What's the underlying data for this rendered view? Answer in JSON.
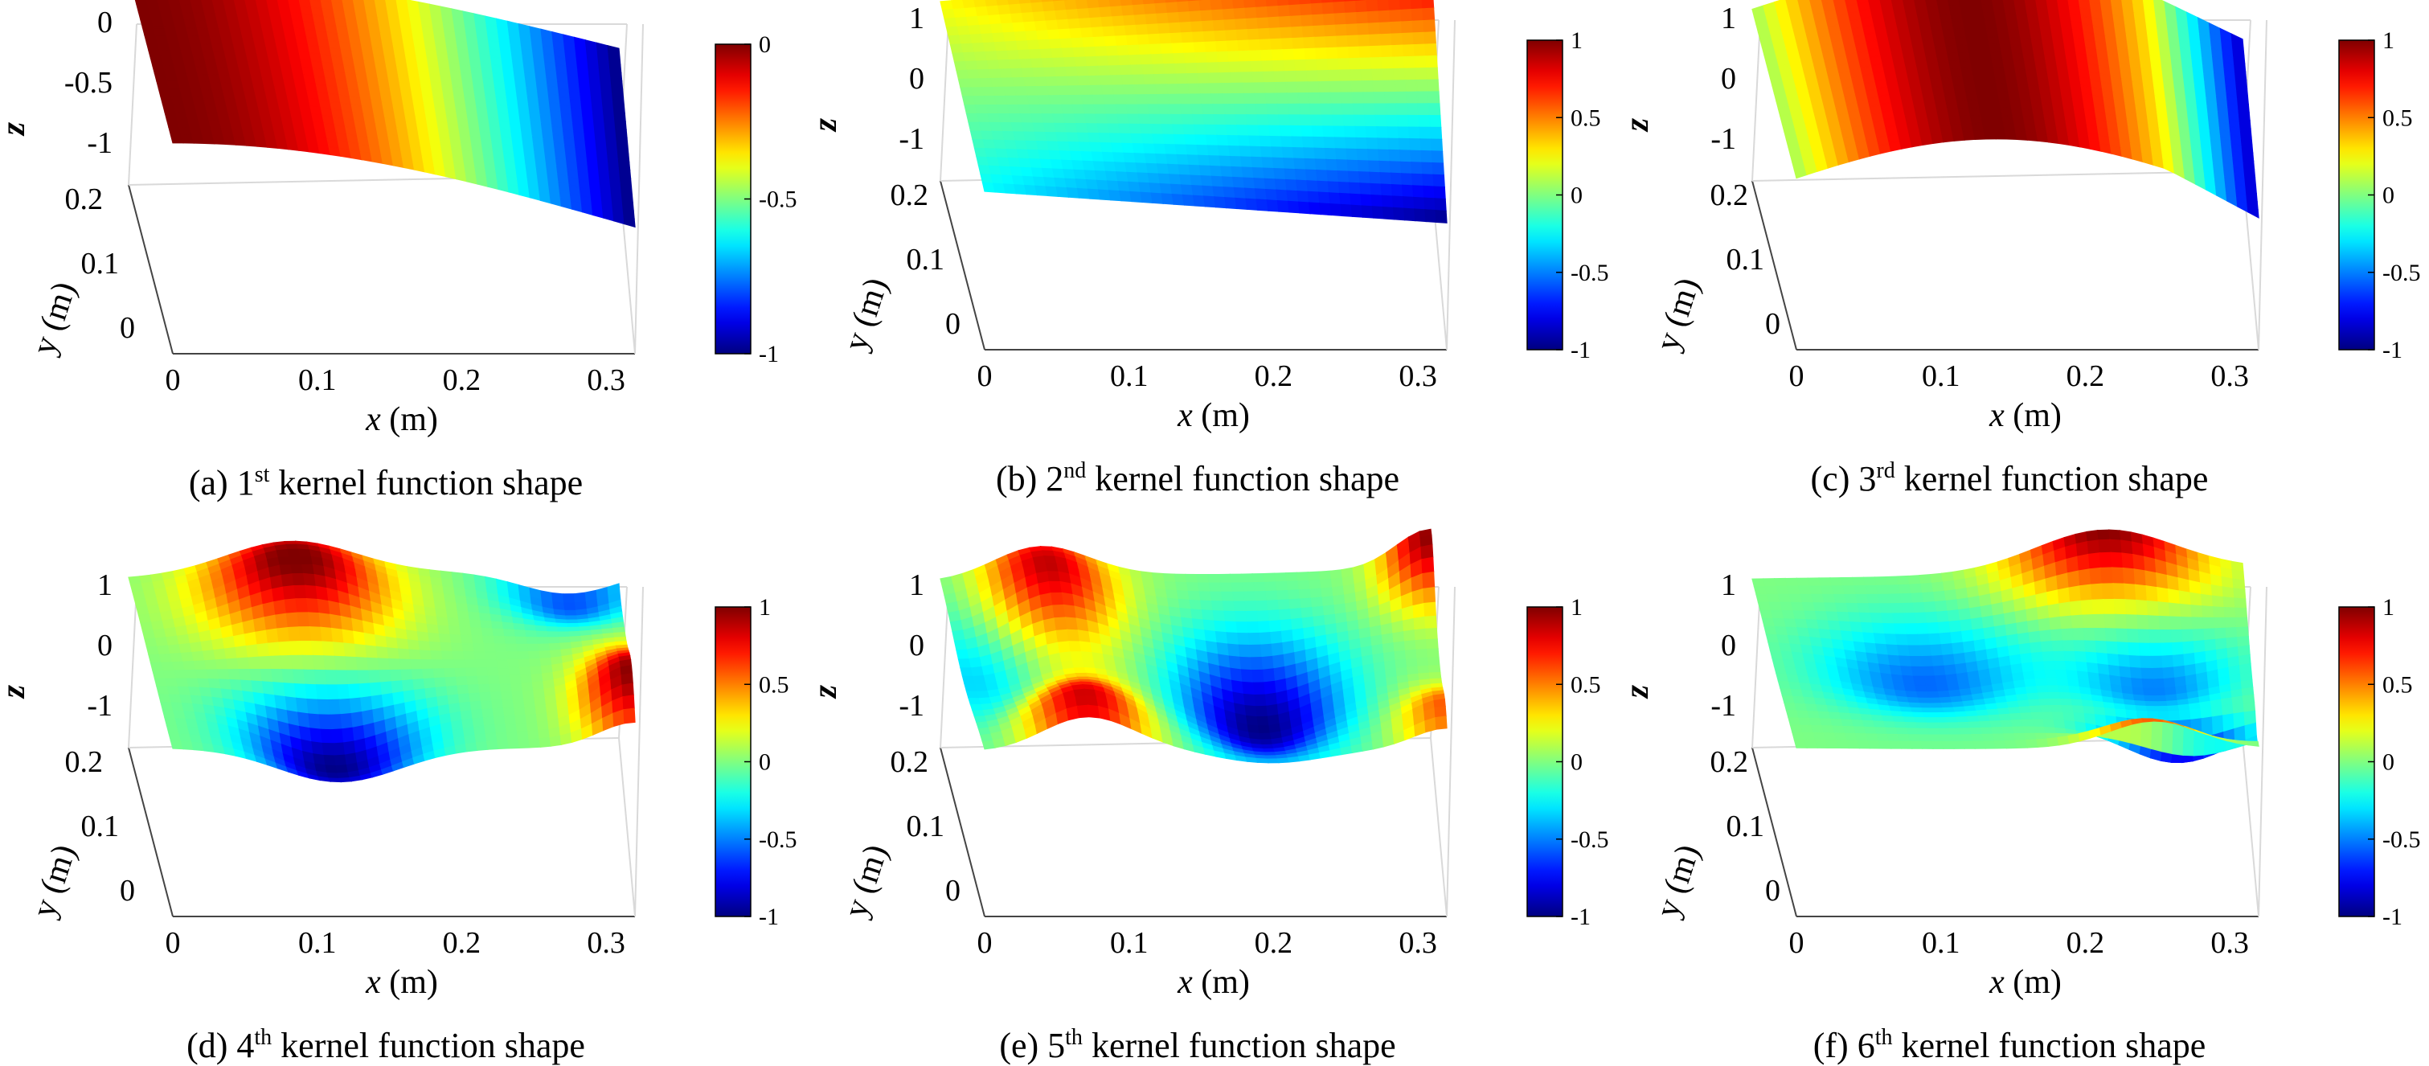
{
  "figure": {
    "note": "Six kernel function shapes shown as 3D surface plots with jet colormap"
  },
  "colors": {
    "jet": [
      "#00008f",
      "#0000ff",
      "#00ffff",
      "#ffff00",
      "#ff0000",
      "#800000"
    ],
    "grid": "#d9d9d9"
  },
  "chart_data": [
    {
      "type": "surface3d",
      "panel": "a",
      "caption": {
        "prefix": "(a) 1",
        "sup": "st",
        "suffix": " kernel function shape"
      },
      "xlabel": "x",
      "xunit": " (m)",
      "ylabel": "y (m)",
      "zlabel": "z",
      "x_ticks": [
        "0",
        "0.1",
        "0.2",
        "0.3"
      ],
      "y_ticks": [
        "0",
        "0.1",
        "0.2"
      ],
      "z_ticks": [
        "0",
        "-0.5",
        "-1"
      ],
      "zlim": [
        -1,
        0
      ],
      "xlim": [
        0,
        0.32
      ],
      "ylim": [
        0,
        0.24
      ],
      "colorbar": {
        "range": [
          -1,
          0
        ],
        "ticks": [
          "0",
          "-0.5",
          "-1"
        ]
      },
      "shape": "decreasing cosine-like along x; z = cos(pi*x/(2*0.32)) - 1 mapped to [-1,0]"
    },
    {
      "type": "surface3d",
      "panel": "b",
      "caption": {
        "prefix": "(b) 2",
        "sup": "nd",
        "suffix": " kernel function shape"
      },
      "xlabel": "x",
      "xunit": " (m)",
      "ylabel": "y (m)",
      "zlabel": "z",
      "x_ticks": [
        "0",
        "0.1",
        "0.2",
        "0.3"
      ],
      "y_ticks": [
        "0",
        "0.1",
        "0.2"
      ],
      "z_ticks": [
        "1",
        "0",
        "-1"
      ],
      "zlim": [
        -1,
        1
      ],
      "xlim": [
        0,
        0.32
      ],
      "ylim": [
        0,
        0.24
      ],
      "colorbar": {
        "range": [
          -1,
          1
        ],
        "ticks": [
          "1",
          "0.5",
          "0",
          "-0.5",
          "-1"
        ]
      },
      "shape": "twist: sign changes across y, magnitude grows with x"
    },
    {
      "type": "surface3d",
      "panel": "c",
      "caption": {
        "prefix": "(c) 3",
        "sup": "rd",
        "suffix": " kernel function shape"
      },
      "xlabel": "x",
      "xunit": " (m)",
      "ylabel": "y (m)",
      "zlabel": "z",
      "x_ticks": [
        "0",
        "0.1",
        "0.2",
        "0.3"
      ],
      "y_ticks": [
        "0",
        "0.1",
        "0.2"
      ],
      "z_ticks": [
        "1",
        "0",
        "-1"
      ],
      "zlim": [
        -1,
        1
      ],
      "xlim": [
        0,
        0.32
      ],
      "ylim": [
        0,
        0.24
      ],
      "colorbar": {
        "range": [
          -1,
          1
        ],
        "ticks": [
          "1",
          "0.5",
          "0",
          "-0.5",
          "-1"
        ]
      },
      "shape": "arch: peak near x = 0.13, falls to -1 at x = 0.32"
    },
    {
      "type": "surface3d",
      "panel": "d",
      "caption": {
        "prefix": "(d) 4",
        "sup": "th",
        "suffix": " kernel function shape"
      },
      "xlabel": "x",
      "xunit": " (m)",
      "ylabel": "y (m)",
      "zlabel": "z",
      "x_ticks": [
        "0",
        "0.1",
        "0.2",
        "0.3"
      ],
      "y_ticks": [
        "0",
        "0.1",
        "0.2"
      ],
      "z_ticks": [
        "1",
        "0",
        "-1"
      ],
      "zlim": [
        -1,
        1
      ],
      "xlim": [
        0,
        0.32
      ],
      "ylim": [
        0,
        0.24
      ],
      "colorbar": {
        "range": [
          -1,
          1
        ],
        "ticks": [
          "1",
          "0.5",
          "0",
          "-0.5",
          "-1"
        ]
      },
      "shape": "saddle: high at back-middle, low at front-middle, high at far right corner"
    },
    {
      "type": "surface3d",
      "panel": "e",
      "caption": {
        "prefix": "(e) 5",
        "sup": "th",
        "suffix": " kernel function shape"
      },
      "xlabel": "x",
      "xunit": " (m)",
      "ylabel": "y (m)",
      "zlabel": "z",
      "x_ticks": [
        "0",
        "0.1",
        "0.2",
        "0.3"
      ],
      "y_ticks": [
        "0",
        "0.1",
        "0.2"
      ],
      "z_ticks": [
        "1",
        "0",
        "-1"
      ],
      "zlim": [
        -1,
        1
      ],
      "xlim": [
        0,
        0.32
      ],
      "ylim": [
        0,
        0.24
      ],
      "colorbar": {
        "range": [
          -1,
          1
        ],
        "ticks": [
          "1",
          "0.5",
          "0",
          "-0.5",
          "-1"
        ]
      },
      "shape": "wave along x with a deep trough near x = 0.22"
    },
    {
      "type": "surface3d",
      "panel": "f",
      "caption": {
        "prefix": "(f) 6",
        "sup": "th",
        "suffix": " kernel function shape"
      },
      "xlabel": "x",
      "xunit": " (m)",
      "ylabel": "y (m)",
      "zlabel": "z",
      "x_ticks": [
        "0",
        "0.1",
        "0.2",
        "0.3"
      ],
      "y_ticks": [
        "0",
        "0.1",
        "0.2"
      ],
      "z_ticks": [
        "1",
        "0",
        "-1"
      ],
      "zlim": [
        -1,
        1
      ],
      "xlim": [
        0,
        0.32
      ],
      "ylim": [
        0,
        0.24
      ],
      "colorbar": {
        "range": [
          -1,
          1
        ],
        "ticks": [
          "1",
          "0.5",
          "0",
          "-0.5",
          "-1"
        ]
      },
      "shape": "mostly near zero, ridge at back-right, sharp trough along front-right edge"
    }
  ]
}
